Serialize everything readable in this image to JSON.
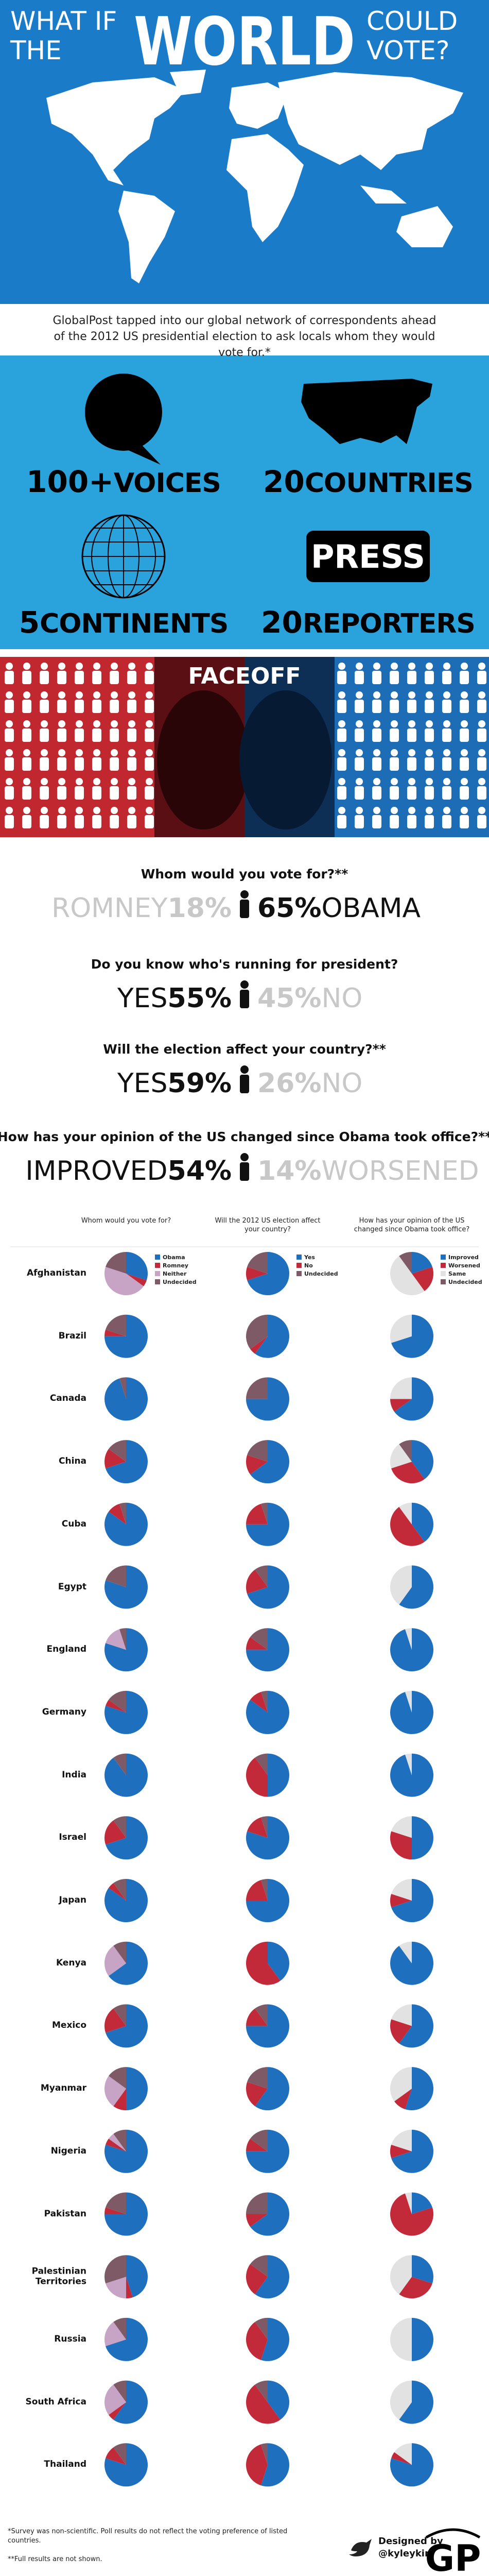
{
  "header": {
    "what_if": "WHAT IF",
    "the": "THE",
    "world": "WORLD",
    "could": "COULD",
    "vote": "VOTE?"
  },
  "intro": "GlobalPost tapped into our global network of correspondents ahead of the 2012 US presidential election to ask locals whom they would vote for.*",
  "stats": [
    {
      "number": "100+",
      "label": "VOICES"
    },
    {
      "number": "20",
      "label": "COUNTRIES"
    },
    {
      "number": "5",
      "label": "CONTINENTS"
    },
    {
      "number": "20",
      "label": "REPORTERS"
    }
  ],
  "press_sign": "PRESS",
  "faceoff": "FACEOFF",
  "questions": [
    {
      "question": "Whom would you vote for?**",
      "left_label": "ROMNEY",
      "left_value": "18%",
      "right_value": "65%",
      "right_label": "OBAMA"
    },
    {
      "question": "Do you know who's running for president?",
      "left_label": "YES",
      "left_value": "55%",
      "right_value": "45%",
      "right_label": "NO"
    },
    {
      "question": "Will the election affect your country?**",
      "left_label": "YES",
      "left_value": "59%",
      "right_value": "26%",
      "right_label": "NO"
    },
    {
      "question": "How has your opinion of the US changed since Obama took office?**",
      "left_label": "IMPROVED",
      "left_value": "54%",
      "right_value": "14%",
      "right_label": "WORSENED"
    }
  ],
  "chart_data": [
    {
      "type": "pie",
      "title": "Whom would you vote for?",
      "categories": [
        "Afghanistan",
        "Brazil",
        "Canada",
        "China",
        "Cuba",
        "Egypt",
        "England",
        "Germany",
        "India",
        "Israel",
        "Japan",
        "Kenya",
        "Mexico",
        "Myanmar",
        "Nigeria",
        "Pakistan",
        "Palestinian Territories",
        "Russia",
        "South Africa",
        "Thailand"
      ],
      "series": [
        {
          "name": "Obama",
          "color": "#1f6fbf",
          "values": [
            30,
            75,
            95,
            70,
            85,
            80,
            80,
            80,
            90,
            70,
            85,
            65,
            70,
            50,
            80,
            75,
            45,
            70,
            60,
            80
          ]
        },
        {
          "name": "Romney",
          "color": "#c22a3a",
          "values": [
            5,
            5,
            0,
            15,
            10,
            0,
            0,
            5,
            0,
            20,
            5,
            0,
            20,
            10,
            5,
            5,
            5,
            0,
            5,
            10
          ]
        },
        {
          "name": "Neither",
          "color": "#c7a3c6",
          "values": [
            45,
            0,
            0,
            0,
            0,
            0,
            15,
            0,
            0,
            0,
            0,
            25,
            0,
            25,
            5,
            0,
            20,
            20,
            25,
            0
          ]
        },
        {
          "name": "Undecided",
          "color": "#7d5a66",
          "values": [
            20,
            20,
            5,
            15,
            5,
            20,
            5,
            15,
            10,
            10,
            10,
            10,
            10,
            15,
            10,
            20,
            30,
            10,
            10,
            10
          ]
        }
      ]
    },
    {
      "type": "pie",
      "title": "Will the 2012 US election affect your country?",
      "series": [
        {
          "name": "Yes",
          "color": "#1f6fbf",
          "values": [
            70,
            60,
            75,
            65,
            75,
            70,
            75,
            85,
            50,
            80,
            75,
            40,
            75,
            60,
            75,
            65,
            60,
            55,
            40,
            55
          ]
        },
        {
          "name": "No",
          "color": "#c22a3a",
          "values": [
            10,
            5,
            0,
            15,
            20,
            20,
            10,
            10,
            40,
            15,
            20,
            60,
            15,
            20,
            10,
            10,
            25,
            35,
            50,
            40
          ]
        },
        {
          "name": "Undecided",
          "color": "#7d5a66",
          "values": [
            20,
            35,
            25,
            20,
            5,
            10,
            15,
            5,
            10,
            5,
            5,
            0,
            10,
            20,
            15,
            25,
            15,
            10,
            10,
            5
          ]
        }
      ]
    },
    {
      "type": "pie",
      "title": "How has your opinion of the US changed since Obama took office?",
      "series": [
        {
          "name": "Improved",
          "color": "#1f6fbf",
          "values": [
            20,
            70,
            65,
            40,
            40,
            60,
            95,
            95,
            95,
            50,
            70,
            90,
            60,
            55,
            70,
            20,
            30,
            50,
            60,
            80
          ]
        },
        {
          "name": "Worsened",
          "color": "#c22a3a",
          "values": [
            20,
            0,
            10,
            30,
            50,
            0,
            0,
            0,
            0,
            30,
            10,
            0,
            20,
            10,
            10,
            75,
            30,
            0,
            0,
            5
          ]
        },
        {
          "name": "Same",
          "color": "#e2e2e2",
          "values": [
            50,
            30,
            25,
            20,
            10,
            40,
            5,
            5,
            5,
            20,
            20,
            10,
            20,
            35,
            20,
            5,
            40,
            50,
            40,
            15
          ]
        },
        {
          "name": "Undecided",
          "color": "#7d5a66",
          "values": [
            10,
            0,
            0,
            10,
            0,
            0,
            0,
            0,
            0,
            0,
            0,
            0,
            0,
            0,
            0,
            0,
            0,
            0,
            0,
            0
          ]
        }
      ]
    }
  ],
  "footer": {
    "note1": "*Survey was non-scientific. Poll results do not reflect the voting preference of listed countries.",
    "note2": "**Full results are not shown.",
    "designed_by": "Designed by",
    "handle": "@kyleykim",
    "logo": "GP"
  }
}
